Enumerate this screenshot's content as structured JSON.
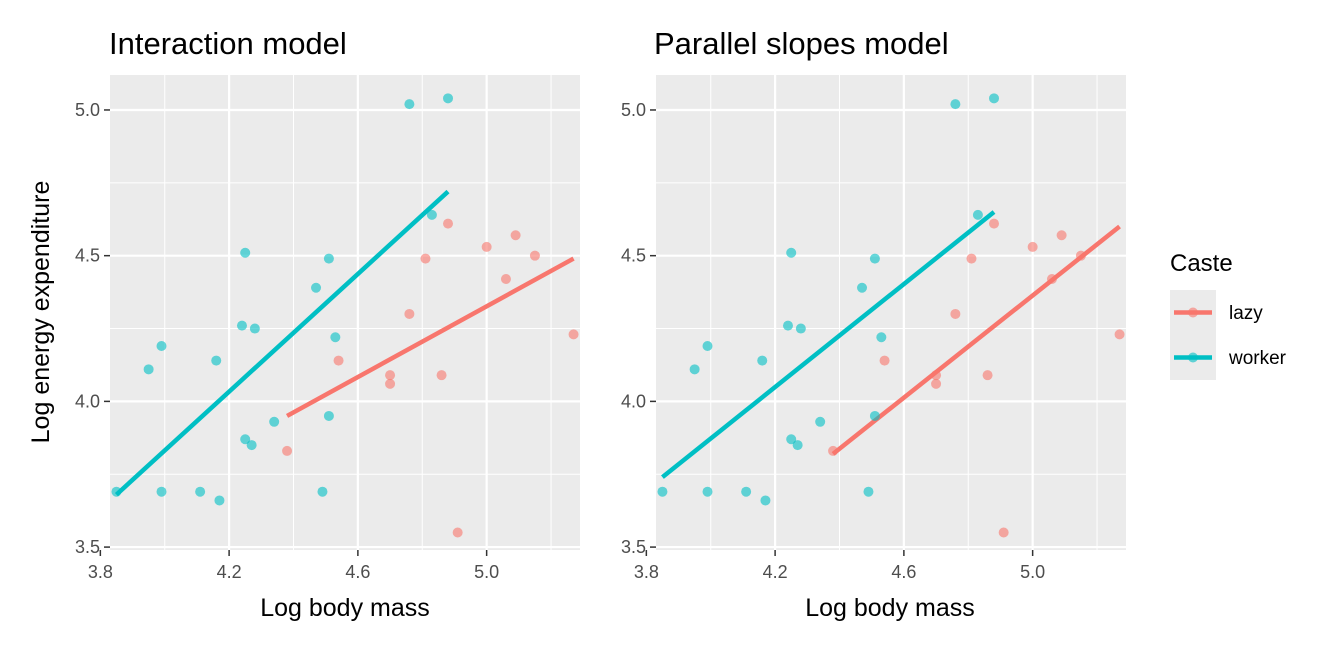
{
  "colors": {
    "lazy": "#F8766D",
    "worker": "#00BFC4",
    "panel_bg": "#EBEBEB",
    "grid": "#FFFFFF",
    "tick": "#333333",
    "tick_label": "#4D4D4D"
  },
  "legend": {
    "title": "Caste",
    "items": [
      {
        "key": "lazy",
        "label": "lazy"
      },
      {
        "key": "worker",
        "label": "worker"
      }
    ]
  },
  "chart_data": [
    {
      "type": "scatter",
      "title": "Interaction model",
      "xlabel": "Log body mass",
      "ylabel": "Log energy expenditure",
      "xlim": [
        3.83,
        5.29
      ],
      "ylim": [
        3.49,
        5.12
      ],
      "x_ticks": [
        3.8,
        4.2,
        4.6,
        5.0
      ],
      "y_ticks": [
        3.5,
        4.0,
        4.5,
        5.0
      ],
      "x_tick_labels": [
        "3.8",
        "4.2",
        "4.6",
        "5.0"
      ],
      "y_tick_labels": [
        "3.5",
        "4.0",
        "4.5",
        "5.0"
      ],
      "grid": true,
      "series": [
        {
          "name": "lazy",
          "points": [
            [
              4.38,
              3.83
            ],
            [
              4.54,
              4.14
            ],
            [
              4.7,
              4.09
            ],
            [
              4.7,
              4.06
            ],
            [
              4.76,
              4.3
            ],
            [
              4.81,
              4.49
            ],
            [
              4.86,
              4.09
            ],
            [
              4.88,
              4.61
            ],
            [
              4.91,
              3.55
            ],
            [
              5.0,
              4.53
            ],
            [
              5.06,
              4.42
            ],
            [
              5.09,
              4.57
            ],
            [
              5.15,
              4.5
            ],
            [
              5.27,
              4.23
            ]
          ],
          "fit": [
            [
              4.38,
              3.95
            ],
            [
              5.27,
              4.49
            ]
          ]
        },
        {
          "name": "worker",
          "points": [
            [
              3.85,
              3.69
            ],
            [
              3.95,
              4.11
            ],
            [
              3.99,
              4.19
            ],
            [
              3.99,
              3.69
            ],
            [
              4.11,
              3.69
            ],
            [
              4.16,
              4.14
            ],
            [
              4.17,
              3.66
            ],
            [
              4.24,
              4.26
            ],
            [
              4.25,
              4.51
            ],
            [
              4.25,
              3.87
            ],
            [
              4.27,
              3.85
            ],
            [
              4.28,
              4.25
            ],
            [
              4.34,
              3.93
            ],
            [
              4.47,
              4.39
            ],
            [
              4.49,
              3.69
            ],
            [
              4.51,
              4.49
            ],
            [
              4.51,
              3.95
            ],
            [
              4.53,
              4.22
            ],
            [
              4.76,
              5.02
            ],
            [
              4.83,
              4.64
            ],
            [
              4.88,
              5.04
            ]
          ],
          "fit": [
            [
              3.85,
              3.68
            ],
            [
              4.88,
              4.72
            ]
          ]
        }
      ]
    },
    {
      "type": "scatter",
      "title": "Parallel slopes model",
      "xlabel": "Log body mass",
      "ylabel": "",
      "xlim": [
        3.83,
        5.29
      ],
      "ylim": [
        3.49,
        5.12
      ],
      "x_ticks": [
        3.8,
        4.2,
        4.6,
        5.0
      ],
      "y_ticks": [
        3.5,
        4.0,
        4.5,
        5.0
      ],
      "x_tick_labels": [
        "3.8",
        "4.2",
        "4.6",
        "5.0"
      ],
      "y_tick_labels": [
        "3.5",
        "4.0",
        "4.5",
        "5.0"
      ],
      "grid": true,
      "series": [
        {
          "name": "lazy",
          "points": [
            [
              4.38,
              3.83
            ],
            [
              4.54,
              4.14
            ],
            [
              4.7,
              4.09
            ],
            [
              4.7,
              4.06
            ],
            [
              4.76,
              4.3
            ],
            [
              4.81,
              4.49
            ],
            [
              4.86,
              4.09
            ],
            [
              4.88,
              4.61
            ],
            [
              4.91,
              3.55
            ],
            [
              5.0,
              4.53
            ],
            [
              5.06,
              4.42
            ],
            [
              5.09,
              4.57
            ],
            [
              5.15,
              4.5
            ],
            [
              5.27,
              4.23
            ]
          ],
          "fit": [
            [
              4.38,
              3.82
            ],
            [
              5.27,
              4.6
            ]
          ]
        },
        {
          "name": "worker",
          "points": [
            [
              3.85,
              3.69
            ],
            [
              3.95,
              4.11
            ],
            [
              3.99,
              4.19
            ],
            [
              3.99,
              3.69
            ],
            [
              4.11,
              3.69
            ],
            [
              4.16,
              4.14
            ],
            [
              4.17,
              3.66
            ],
            [
              4.24,
              4.26
            ],
            [
              4.25,
              4.51
            ],
            [
              4.25,
              3.87
            ],
            [
              4.27,
              3.85
            ],
            [
              4.28,
              4.25
            ],
            [
              4.34,
              3.93
            ],
            [
              4.47,
              4.39
            ],
            [
              4.49,
              3.69
            ],
            [
              4.51,
              4.49
            ],
            [
              4.51,
              3.95
            ],
            [
              4.53,
              4.22
            ],
            [
              4.76,
              5.02
            ],
            [
              4.83,
              4.64
            ],
            [
              4.88,
              5.04
            ]
          ],
          "fit": [
            [
              3.85,
              3.74
            ],
            [
              4.88,
              4.65
            ]
          ]
        }
      ]
    }
  ]
}
